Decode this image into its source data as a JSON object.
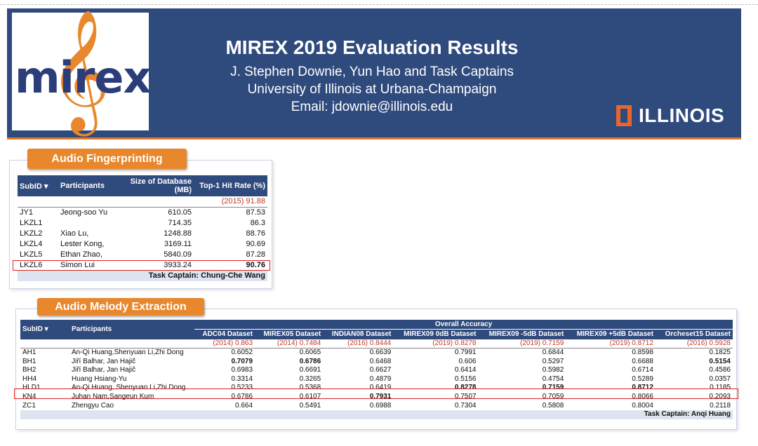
{
  "header": {
    "logo_text": "mirex",
    "title": "MIREX 2019 Evaluation Results",
    "authors": "J. Stephen Downie, Yun Hao and Task Captains",
    "institution": "University of Illinois at Urbana-Champaign",
    "email": "Email: jdownie@illinois.edu",
    "brand": "ILLINOIS"
  },
  "fingerprint": {
    "section": "Audio Fingerprinting",
    "headers": {
      "subid": "SubID ▾",
      "participants": "Participants",
      "size": "Size of Database (MB)",
      "hit": "Top-1 Hit Rate (%)"
    },
    "baseline": "(2015) 91.88",
    "rows": [
      {
        "id": "JY1",
        "participants": "Jeong-soo Yu",
        "size": "610.05",
        "hit": "87.53"
      },
      {
        "id": "LKZL1",
        "participants": "",
        "size": "714.35",
        "hit": "86.3"
      },
      {
        "id": "LKZL2",
        "participants": "Xiao Lu,",
        "size": "1248.88",
        "hit": "88.76"
      },
      {
        "id": "LKZL4",
        "participants": "Lester Kong,",
        "size": "3169.11",
        "hit": "90.69"
      },
      {
        "id": "LKZL5",
        "participants": "Ethan Zhao,",
        "size": "5840.09",
        "hit": "87.28"
      },
      {
        "id": "LKZL6",
        "participants": "Simon Lui",
        "size": "3933.24",
        "hit": "90.76"
      }
    ],
    "captain": "Task Captain: Chung-Che Wang"
  },
  "melody": {
    "section": "Audio Melody Extraction",
    "headers": {
      "subid": "SubID ▾",
      "participants": "Participants",
      "overall": "Overall Accuracy"
    },
    "datasets": [
      "ADC04 Dataset",
      "MIREX05 Dataset",
      "INDIAN08 Dataset",
      "MIREX09 0dB Dataset",
      "MIREX09 -5dB Dataset",
      "MIREX09 +5dB Dataset",
      "Orcheset15 Dataset"
    ],
    "baselines": [
      "(2014) 0.863",
      "(2014) 0.7484",
      "(2016) 0.8444",
      "(2019) 0.8278",
      "(2019) 0.7159",
      "(2019) 0.8712",
      "(2016) 0.5928"
    ],
    "rows": [
      {
        "id": "AH1",
        "participants": "An-Qi Huang,Shenyuan Li,Zhi Dong",
        "v": [
          "0.6052",
          "0.6065",
          "0.6639",
          "0.7991",
          "0.6844",
          "0.8598",
          "0.1825"
        ]
      },
      {
        "id": "BH1",
        "participants": "Jiří Balhar, Jan Hajič",
        "v": [
          "0.7079",
          "0.6786",
          "0.6468",
          "0.606",
          "0.5297",
          "0.6688",
          "0.5154"
        ]
      },
      {
        "id": "BH2",
        "participants": "Jiří Balhar, Jan Hajič",
        "v": [
          "0.6983",
          "0.6691",
          "0.6627",
          "0.6414",
          "0.5982",
          "0.6714",
          "0.4586"
        ]
      },
      {
        "id": "HH4",
        "participants": "Huang Hsiang-Yu",
        "v": [
          "0.3314",
          "0.3265",
          "0.4879",
          "0.5156",
          "0.4754",
          "0.5289",
          "0.0357"
        ]
      },
      {
        "id": "HLD1",
        "participants": "An-Qi Huang, Shenyuan Li,Zhi Dong",
        "v": [
          "0.5233",
          "0.5368",
          "0.6419",
          "0.8278",
          "0.7159",
          "0.8712",
          "0.1185"
        ]
      },
      {
        "id": "KN4",
        "participants": "Juhan Nam,Sangeun Kum",
        "v": [
          "0.6786",
          "0.6107",
          "0.7931",
          "0.7507",
          "0.7059",
          "0.8066",
          "0.2093"
        ]
      },
      {
        "id": "ZC1",
        "participants": "Zhengyu Cao",
        "v": [
          "0.664",
          "0.5491",
          "0.6988",
          "0.7304",
          "0.5808",
          "0.8004",
          "0.2118"
        ]
      }
    ],
    "captain": "Task Captain: Anqi Huang"
  }
}
